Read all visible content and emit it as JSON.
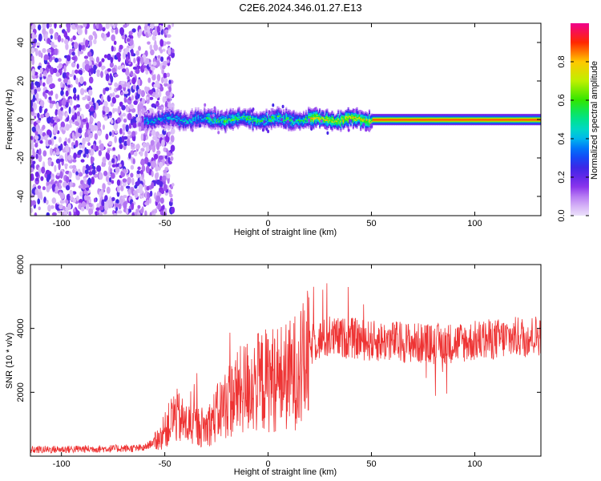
{
  "title": "C2E6.2024.346.01.27.E13",
  "chart_data": [
    {
      "type": "heatmap",
      "xlabel": "Height of straight line (km)",
      "ylabel": "Frequency (Hz)",
      "xlim": [
        -115,
        132
      ],
      "ylim": [
        -50,
        50
      ],
      "xticks": [
        -100,
        -50,
        0,
        50,
        100
      ],
      "yticks": [
        -40,
        -20,
        0,
        20,
        40
      ],
      "xtick_labels": [
        "-100",
        "-50",
        "0",
        "50",
        "100"
      ],
      "ytick_labels": [
        "-40",
        "-20",
        "0",
        "20",
        "40"
      ],
      "colorbar": {
        "label": "Normalized spectral amplitude",
        "range": [
          0,
          1
        ],
        "ticks": [
          0,
          0.2,
          0.4,
          0.6,
          0.8
        ],
        "tick_labels": [
          "0.0",
          "0.2",
          "0.4",
          "0.6",
          "0.8"
        ]
      },
      "features": {
        "scatter_noise_region_km": [
          -115,
          -52
        ],
        "band_center_hz": 0,
        "band_halfwidth_hz": 3,
        "strong_band_start_km": 50
      }
    },
    {
      "type": "line",
      "xlabel": "Height of straight line (km)",
      "ylabel": "SNR (10 * v/v)",
      "xlim": [
        -115,
        132
      ],
      "ylim": [
        0,
        6000
      ],
      "xticks": [
        -100,
        -50,
        0,
        50,
        100
      ],
      "yticks": [
        2000,
        4000,
        6000
      ],
      "xtick_labels": [
        "-100",
        "-50",
        "0",
        "50",
        "100"
      ],
      "ytick_labels": [
        "2000",
        "4000",
        "6000"
      ],
      "color": "#ee3333",
      "envelope": {
        "x": [
          -115,
          -60,
          -52,
          -45,
          -40,
          -30,
          -20,
          -10,
          0,
          10,
          18,
          22,
          30,
          40,
          50,
          60,
          80,
          100,
          132
        ],
        "y": [
          200,
          250,
          600,
          1300,
          1000,
          900,
          1700,
          2200,
          2400,
          2500,
          2900,
          3600,
          3700,
          3700,
          3600,
          3600,
          3500,
          3600,
          3800
        ]
      }
    }
  ]
}
